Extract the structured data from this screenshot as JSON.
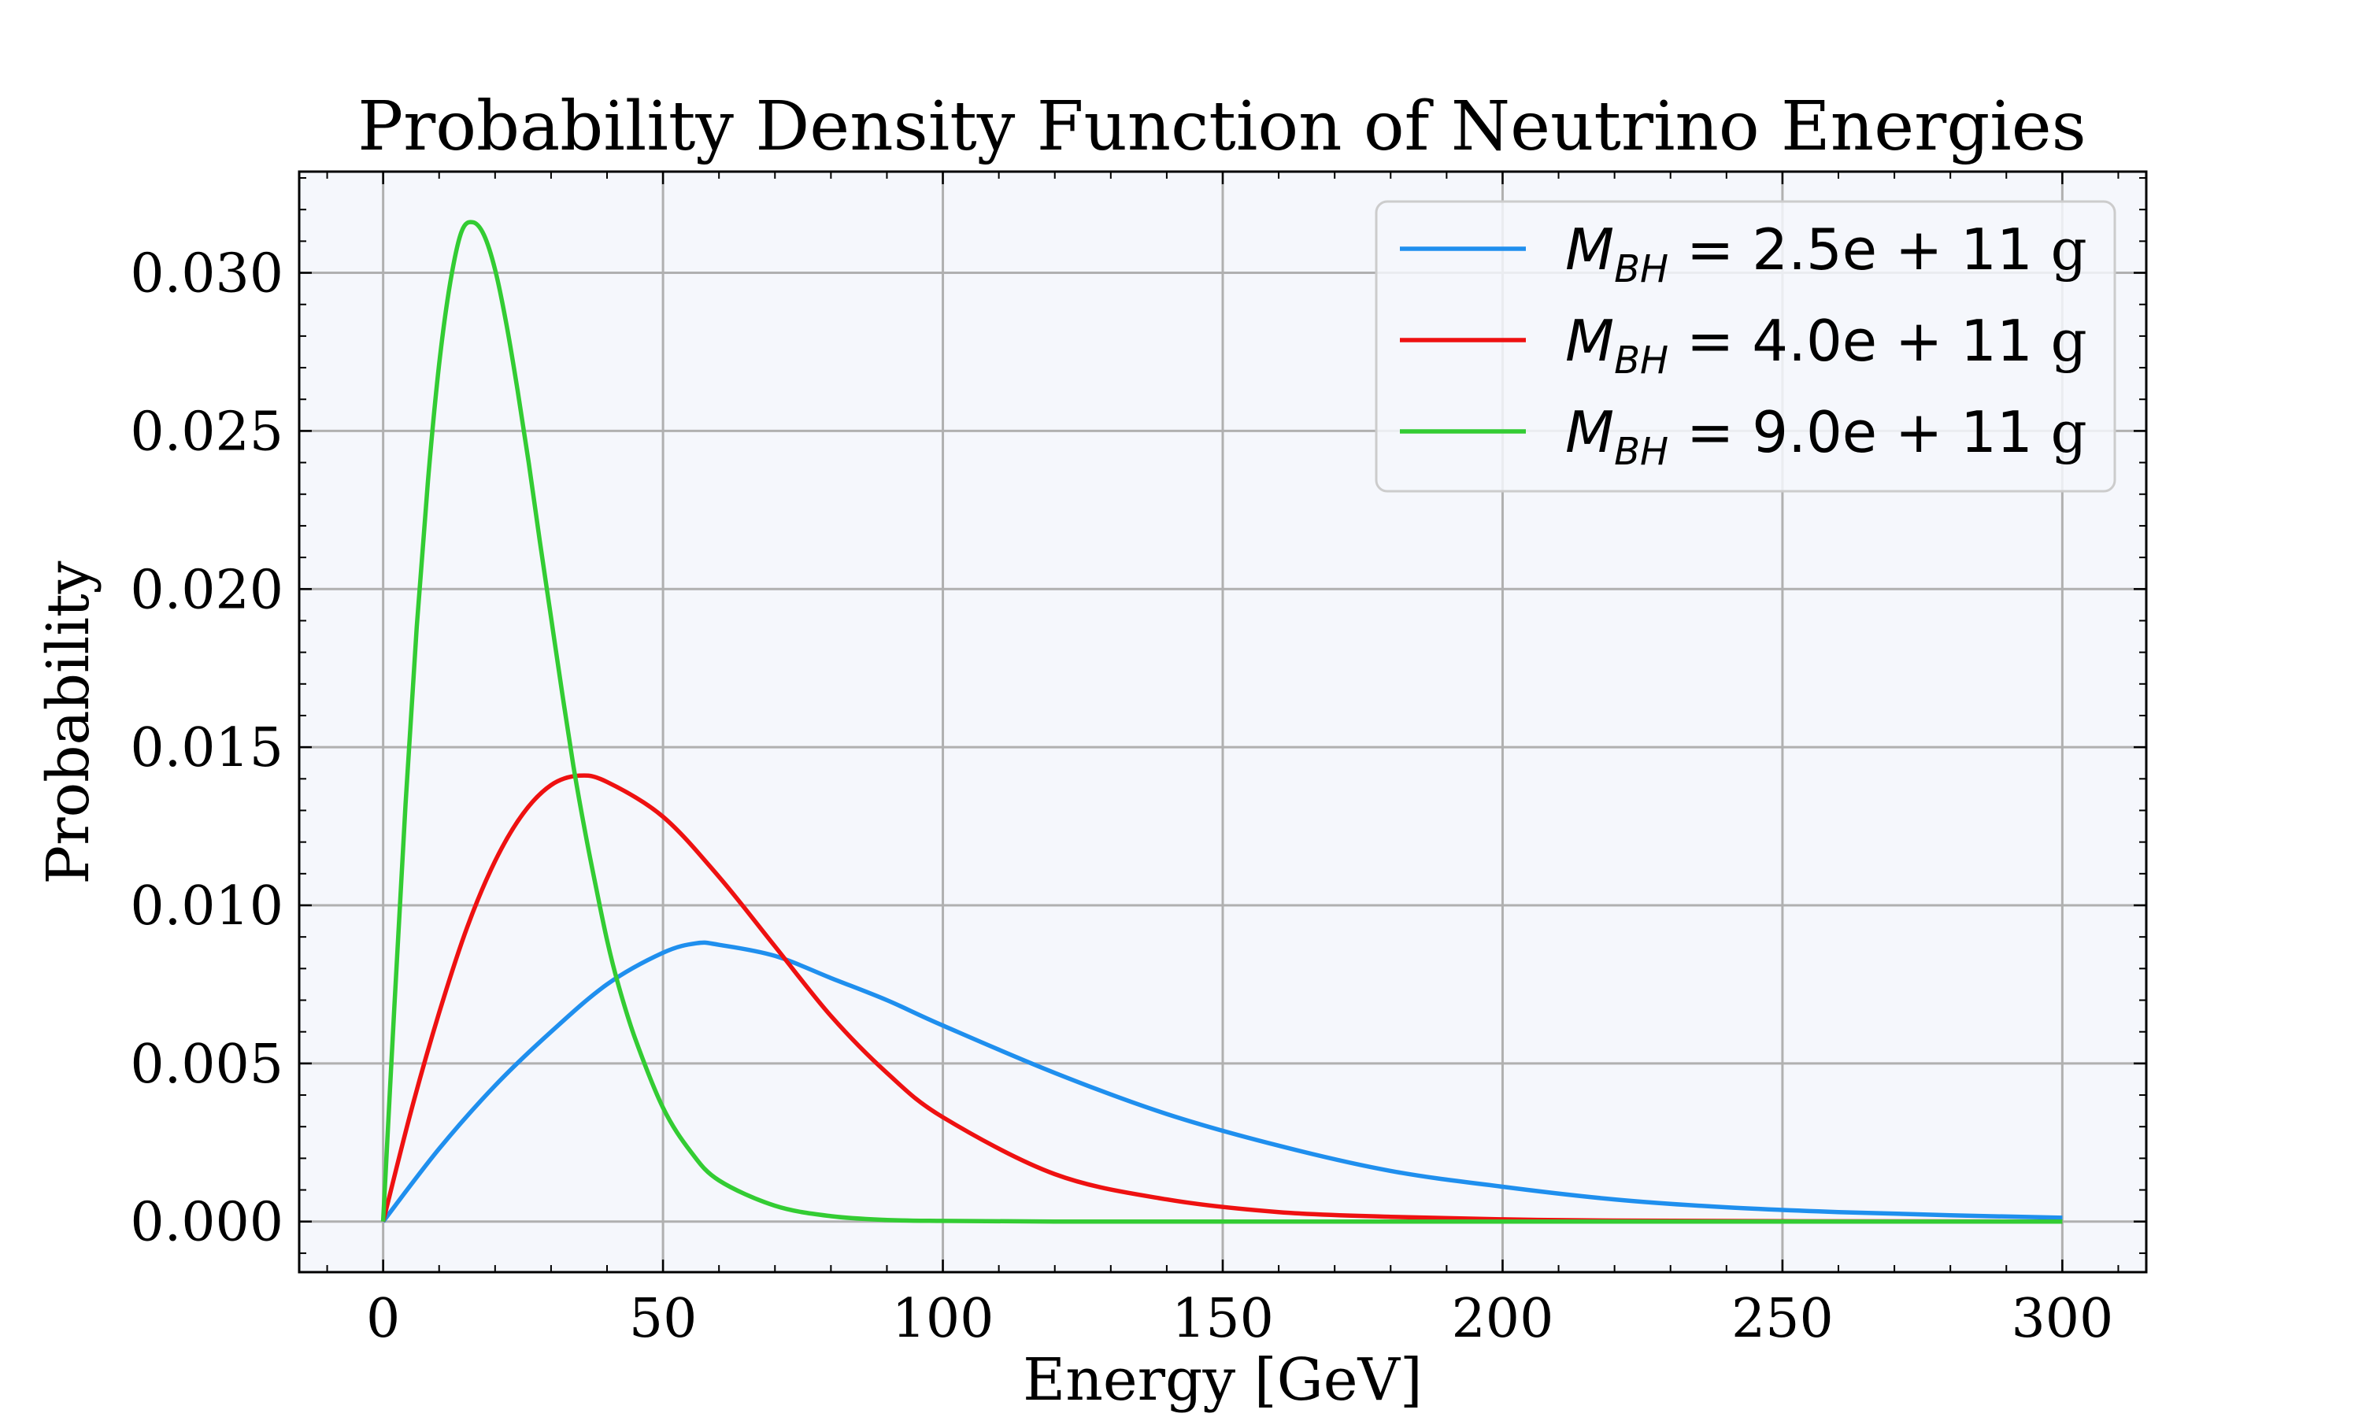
{
  "chart_data": {
    "type": "line",
    "title": "Probability Density Function of Neutrino Energies",
    "xlabel": "Energy [GeV]",
    "ylabel": "Probability",
    "xlim": [
      -15,
      315
    ],
    "ylim": [
      -0.0016,
      0.0332
    ],
    "x_ticks": [
      0,
      50,
      100,
      150,
      200,
      250,
      300
    ],
    "y_ticks": [
      0.0,
      0.005,
      0.01,
      0.015,
      0.02,
      0.025,
      0.03
    ],
    "x_tick_labels": [
      "0",
      "50",
      "100",
      "150",
      "200",
      "250",
      "300"
    ],
    "y_tick_labels": [
      "0.000",
      "0.005",
      "0.010",
      "0.015",
      "0.020",
      "0.025",
      "0.030"
    ],
    "grid": true,
    "legend_position": "top-right",
    "background_color": "#f5f7fc",
    "series": [
      {
        "name": "M_BH = 2.5e+11 g",
        "legend_prefix": "M",
        "legend_subscript": "BH",
        "legend_value": " = 2.5e + 11 ",
        "legend_unit": "g",
        "color": "#1f8fee",
        "x": [
          0,
          10,
          20,
          30,
          40,
          50,
          56,
          60,
          70,
          80,
          90,
          100,
          120,
          140,
          160,
          180,
          200,
          220,
          240,
          260,
          280,
          300
        ],
        "y": [
          0.0,
          0.0023,
          0.0043,
          0.006,
          0.0075,
          0.0085,
          0.0088,
          0.00875,
          0.0084,
          0.0077,
          0.007,
          0.0062,
          0.0047,
          0.0034,
          0.0024,
          0.0016,
          0.0011,
          0.0007,
          0.00045,
          0.0003,
          0.0002,
          0.00012
        ]
      },
      {
        "name": "M_BH = 4.0e+11 g",
        "legend_prefix": "M",
        "legend_subscript": "BH",
        "legend_value": " = 4.0e + 11 ",
        "legend_unit": "g",
        "color": "#ee1111",
        "x": [
          0,
          5,
          10,
          15,
          20,
          25,
          30,
          35,
          40,
          50,
          60,
          70,
          80,
          90,
          100,
          120,
          140,
          160,
          180,
          200,
          220,
          250,
          300
        ],
        "y": [
          0.0,
          0.0035,
          0.0066,
          0.0093,
          0.0114,
          0.0129,
          0.0138,
          0.0141,
          0.0139,
          0.0128,
          0.0109,
          0.0087,
          0.0065,
          0.0047,
          0.0033,
          0.0015,
          0.0007,
          0.0003,
          0.00015,
          7e-05,
          3e-05,
          1e-05,
          0.0
        ]
      },
      {
        "name": "M_BH = 9.0e+11 g",
        "legend_prefix": "M",
        "legend_subscript": "BH",
        "legend_value": " = 9.0e + 11 ",
        "legend_unit": "g",
        "color": "#33cc33",
        "x": [
          0,
          2,
          4,
          6,
          8,
          10,
          12,
          14,
          16,
          18,
          20,
          22,
          24,
          26,
          28,
          30,
          32,
          34,
          36,
          38,
          40,
          42,
          45,
          50,
          55,
          60,
          70,
          80,
          90,
          100,
          120,
          150,
          200,
          300
        ],
        "y": [
          0.0,
          0.0068,
          0.0132,
          0.0188,
          0.0234,
          0.0271,
          0.0297,
          0.0313,
          0.0316,
          0.0312,
          0.0301,
          0.0284,
          0.0263,
          0.024,
          0.0215,
          0.0191,
          0.0167,
          0.0144,
          0.0124,
          0.0106,
          0.0089,
          0.0075,
          0.0058,
          0.0036,
          0.0022,
          0.0013,
          0.0005,
          0.00017,
          5e-05,
          2e-05,
          0.0,
          0.0,
          0.0,
          0.0
        ]
      }
    ]
  }
}
